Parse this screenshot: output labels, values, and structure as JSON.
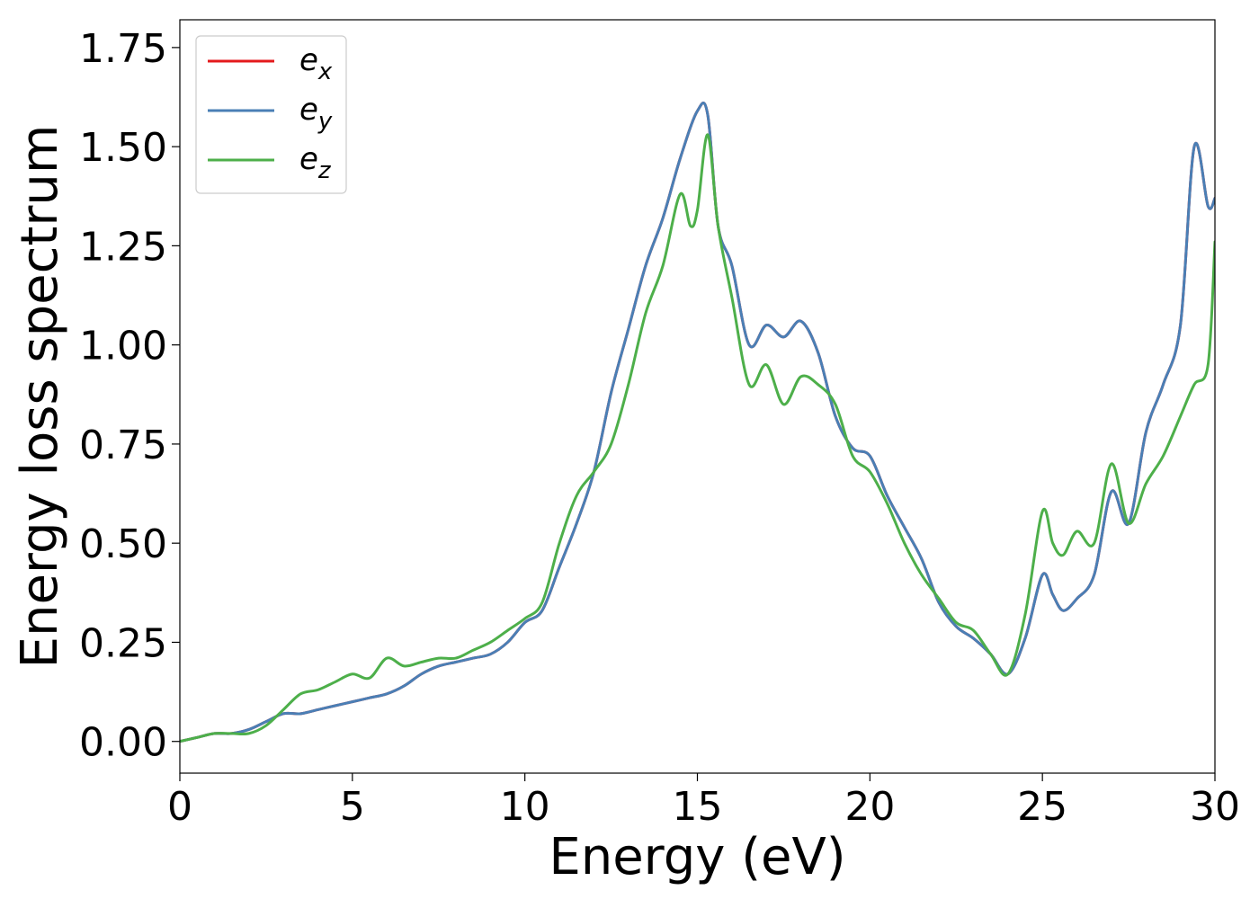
{
  "chart_data": {
    "type": "line",
    "title": "",
    "xlabel": "Energy (eV)",
    "ylabel": "Energy loss spectrum",
    "xlim": [
      0,
      30
    ],
    "ylim": [
      -0.08,
      1.82
    ],
    "xticks": [
      0,
      5,
      10,
      15,
      20,
      25,
      30
    ],
    "xtick_labels": [
      "0",
      "5",
      "10",
      "15",
      "20",
      "25",
      "30"
    ],
    "yticks": [
      0.0,
      0.25,
      0.5,
      0.75,
      1.0,
      1.25,
      1.5,
      1.75
    ],
    "ytick_labels": [
      "0.00",
      "0.25",
      "0.50",
      "0.75",
      "1.00",
      "1.25",
      "1.50",
      "1.75"
    ],
    "grid": false,
    "legend_position": "top-left",
    "series": [
      {
        "name": "e_x",
        "label_base": "e",
        "label_sub": "x",
        "color": "#e41a1c",
        "x": [
          0,
          0.5,
          1,
          1.5,
          2,
          2.5,
          3,
          3.5,
          4,
          4.5,
          5,
          5.5,
          6,
          6.5,
          7,
          7.5,
          8,
          8.5,
          9,
          9.5,
          10,
          10.5,
          11,
          11.5,
          12,
          12.5,
          13,
          13.5,
          14,
          14.5,
          15,
          15.3,
          15.6,
          16,
          16.5,
          17,
          17.5,
          18,
          18.5,
          19,
          19.5,
          20,
          20.5,
          21,
          21.5,
          22,
          22.5,
          23,
          23.5,
          24,
          24.5,
          25,
          25.3,
          25.6,
          26,
          26.5,
          27,
          27.5,
          28,
          28.5,
          29,
          29.4,
          29.8,
          30
        ],
        "y": [
          0.0,
          0.01,
          0.02,
          0.02,
          0.03,
          0.05,
          0.07,
          0.07,
          0.08,
          0.09,
          0.1,
          0.11,
          0.12,
          0.14,
          0.17,
          0.19,
          0.2,
          0.21,
          0.22,
          0.25,
          0.3,
          0.33,
          0.44,
          0.55,
          0.68,
          0.88,
          1.04,
          1.2,
          1.32,
          1.47,
          1.59,
          1.58,
          1.3,
          1.2,
          1.0,
          1.05,
          1.02,
          1.06,
          0.98,
          0.82,
          0.74,
          0.72,
          0.62,
          0.54,
          0.46,
          0.35,
          0.29,
          0.26,
          0.22,
          0.17,
          0.26,
          0.42,
          0.37,
          0.33,
          0.36,
          0.42,
          0.63,
          0.55,
          0.78,
          0.9,
          1.05,
          1.5,
          1.35,
          1.37
        ]
      },
      {
        "name": "e_y",
        "label_base": "e",
        "label_sub": "y",
        "color": "#4a7fb5",
        "x": [
          0,
          0.5,
          1,
          1.5,
          2,
          2.5,
          3,
          3.5,
          4,
          4.5,
          5,
          5.5,
          6,
          6.5,
          7,
          7.5,
          8,
          8.5,
          9,
          9.5,
          10,
          10.5,
          11,
          11.5,
          12,
          12.5,
          13,
          13.5,
          14,
          14.5,
          15,
          15.3,
          15.6,
          16,
          16.5,
          17,
          17.5,
          18,
          18.5,
          19,
          19.5,
          20,
          20.5,
          21,
          21.5,
          22,
          22.5,
          23,
          23.5,
          24,
          24.5,
          25,
          25.3,
          25.6,
          26,
          26.5,
          27,
          27.5,
          28,
          28.5,
          29,
          29.4,
          29.8,
          30
        ],
        "y": [
          0.0,
          0.01,
          0.02,
          0.02,
          0.03,
          0.05,
          0.07,
          0.07,
          0.08,
          0.09,
          0.1,
          0.11,
          0.12,
          0.14,
          0.17,
          0.19,
          0.2,
          0.21,
          0.22,
          0.25,
          0.3,
          0.33,
          0.44,
          0.55,
          0.68,
          0.88,
          1.04,
          1.2,
          1.32,
          1.47,
          1.59,
          1.58,
          1.3,
          1.2,
          1.0,
          1.05,
          1.02,
          1.06,
          0.98,
          0.82,
          0.74,
          0.72,
          0.62,
          0.54,
          0.46,
          0.35,
          0.29,
          0.26,
          0.22,
          0.17,
          0.26,
          0.42,
          0.37,
          0.33,
          0.36,
          0.42,
          0.63,
          0.55,
          0.78,
          0.9,
          1.05,
          1.5,
          1.35,
          1.37
        ]
      },
      {
        "name": "e_z",
        "label_base": "e",
        "label_sub": "z",
        "color": "#4daf4a",
        "x": [
          0,
          0.5,
          1,
          1.5,
          2,
          2.5,
          3,
          3.5,
          4,
          4.5,
          5,
          5.5,
          6,
          6.5,
          7,
          7.5,
          8,
          8.5,
          9,
          9.5,
          10,
          10.5,
          11,
          11.5,
          12,
          12.5,
          13,
          13.5,
          14,
          14.5,
          14.8,
          15,
          15.3,
          15.6,
          16,
          16.5,
          17,
          17.5,
          18,
          18.5,
          19,
          19.5,
          20,
          20.5,
          21,
          21.5,
          22,
          22.5,
          23,
          23.5,
          24,
          24.5,
          25,
          25.3,
          25.6,
          26,
          26.5,
          27,
          27.5,
          28,
          28.5,
          29,
          29.4,
          29.8,
          30
        ],
        "y": [
          0.0,
          0.01,
          0.02,
          0.02,
          0.02,
          0.04,
          0.08,
          0.12,
          0.13,
          0.15,
          0.17,
          0.16,
          0.21,
          0.19,
          0.2,
          0.21,
          0.21,
          0.23,
          0.25,
          0.28,
          0.31,
          0.35,
          0.5,
          0.62,
          0.68,
          0.75,
          0.9,
          1.08,
          1.2,
          1.38,
          1.3,
          1.34,
          1.53,
          1.3,
          1.12,
          0.9,
          0.95,
          0.85,
          0.92,
          0.9,
          0.85,
          0.72,
          0.68,
          0.6,
          0.5,
          0.42,
          0.36,
          0.3,
          0.28,
          0.22,
          0.17,
          0.32,
          0.58,
          0.5,
          0.47,
          0.53,
          0.5,
          0.7,
          0.55,
          0.65,
          0.72,
          0.82,
          0.9,
          0.95,
          1.26
        ]
      }
    ]
  }
}
